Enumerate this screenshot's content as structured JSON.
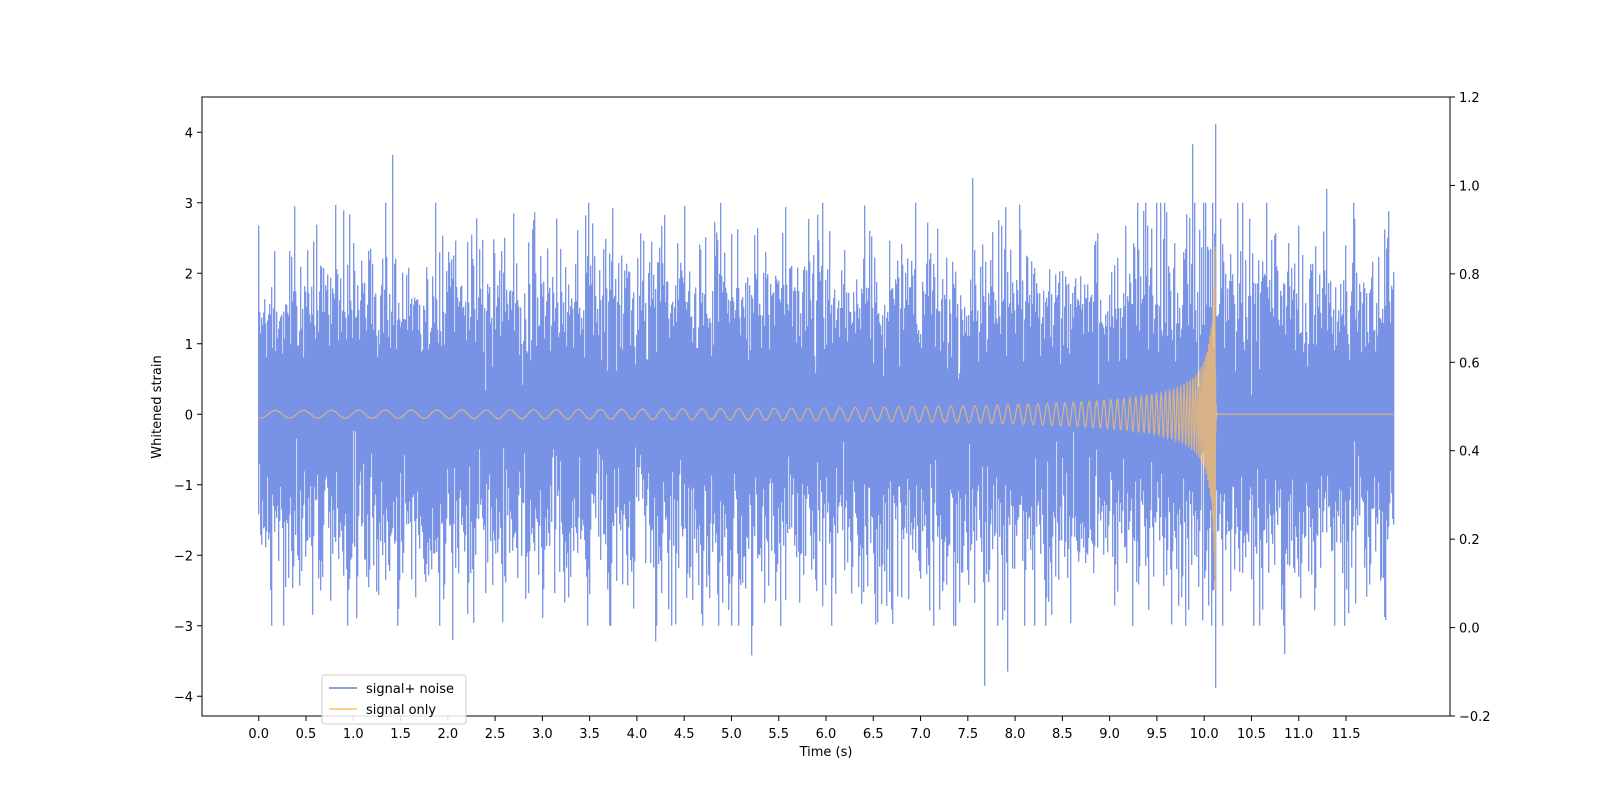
{
  "chart_data": {
    "type": "line",
    "title": "",
    "xlabel": "Time (s)",
    "ylabel": "Whitened strain",
    "xlim": [
      -0.6,
      12.6
    ],
    "ylim": [
      -4.28,
      4.5
    ],
    "y2lim": [
      -0.2,
      1.2
    ],
    "x_ticks": [
      0.0,
      0.5,
      1.0,
      1.5,
      2.0,
      2.5,
      3.0,
      3.5,
      4.0,
      4.5,
      5.0,
      5.5,
      6.0,
      6.5,
      7.0,
      7.5,
      8.0,
      8.5,
      9.0,
      9.5,
      10.0,
      10.5,
      11.0,
      11.5
    ],
    "x_tick_labels": [
      "0.0",
      "0.5",
      "1.0",
      "1.5",
      "2.0",
      "2.5",
      "3.0",
      "3.5",
      "4.0",
      "4.5",
      "5.0",
      "5.5",
      "6.0",
      "6.5",
      "7.0",
      "7.5",
      "8.0",
      "8.5",
      "9.0",
      "9.5",
      "10.0",
      "10.5",
      "11.0",
      "11.5"
    ],
    "y_ticks": [
      -4,
      -3,
      -2,
      -1,
      0,
      1,
      2,
      3,
      4
    ],
    "y_tick_labels": [
      "−4",
      "−3",
      "−2",
      "−1",
      "0",
      "1",
      "2",
      "3",
      "4"
    ],
    "y2_ticks": [
      -0.2,
      0.0,
      0.2,
      0.4,
      0.6,
      0.8,
      1.0,
      1.2
    ],
    "y2_tick_labels": [
      "−0.2",
      "0.0",
      "0.2",
      "0.4",
      "0.6",
      "0.8",
      "1.0",
      "1.2"
    ],
    "grid": false,
    "legend_position": "lower-left",
    "series": [
      {
        "name": "signal+ noise",
        "color": "#6080e0",
        "x_range": [
          0.0,
          12.0
        ],
        "description_stats": {
          "mean": 0,
          "std": 1.0,
          "max": 4.1,
          "min": -3.9
        },
        "peaks": [
          {
            "x": 1.42,
            "y": 3.68
          },
          {
            "x": 7.55,
            "y": 3.35
          },
          {
            "x": 9.88,
            "y": 3.83
          },
          {
            "x": 10.12,
            "y": 4.12
          },
          {
            "x": 10.12,
            "y": -3.88
          },
          {
            "x": 7.68,
            "y": -3.85
          },
          {
            "x": 7.92,
            "y": -3.65
          },
          {
            "x": 2.05,
            "y": -3.2
          },
          {
            "x": 4.2,
            "y": -3.22
          },
          {
            "x": 5.22,
            "y": -3.42
          },
          {
            "x": 11.3,
            "y": 3.2
          },
          {
            "x": 11.95,
            "y": 2.88
          },
          {
            "x": 11.92,
            "y": -2.92
          },
          {
            "x": 0.38,
            "y": 2.95
          },
          {
            "x": 10.85,
            "y": -3.4
          }
        ]
      },
      {
        "name": "signal only",
        "color": "#ffc060",
        "x_range": [
          0.0,
          12.0
        ],
        "merger_time": 10.12,
        "peak_amplitude": 3.0,
        "start_visible": 5.0
      }
    ]
  }
}
